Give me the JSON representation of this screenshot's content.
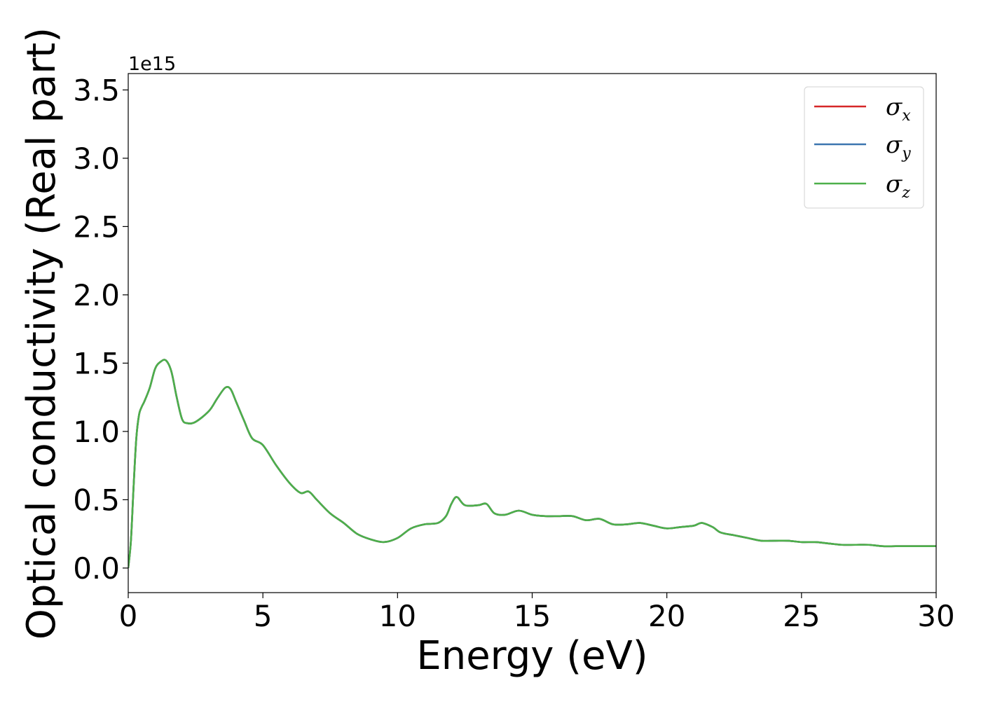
{
  "chart_data": {
    "type": "line",
    "xlabel": "Energy (eV)",
    "ylabel": "Optical conductivity (Real part)",
    "y_offset_label": "1e15",
    "xlim": [
      0,
      30
    ],
    "ylim": [
      -0.18,
      3.62
    ],
    "x_ticks": [
      0,
      5,
      10,
      15,
      20,
      25,
      30
    ],
    "x_tick_labels": [
      "0",
      "5",
      "10",
      "15",
      "20",
      "25",
      "30"
    ],
    "y_ticks": [
      0.0,
      0.5,
      1.0,
      1.5,
      2.0,
      2.5,
      3.0,
      3.5
    ],
    "y_tick_labels": [
      "0.0",
      "0.5",
      "1.0",
      "1.5",
      "2.0",
      "2.5",
      "3.0",
      "3.5"
    ],
    "grid": false,
    "legend_position": "top-right",
    "x": [
      0,
      0.1,
      0.2,
      0.3,
      0.4,
      0.5,
      0.6,
      0.8,
      1.0,
      1.2,
      1.4,
      1.6,
      1.8,
      2.0,
      2.2,
      2.5,
      3.0,
      3.3,
      3.6,
      3.8,
      4.0,
      4.3,
      4.6,
      5.0,
      5.5,
      6.0,
      6.4,
      6.7,
      7.0,
      7.5,
      8.0,
      8.5,
      9.0,
      9.5,
      10.0,
      10.5,
      11.0,
      11.5,
      11.8,
      12.0,
      12.2,
      12.5,
      13.0,
      13.3,
      13.6,
      14.0,
      14.5,
      15.0,
      15.5,
      16.0,
      16.5,
      17.0,
      17.5,
      18.0,
      18.5,
      19.0,
      19.5,
      20.0,
      20.5,
      21.0,
      21.3,
      21.7,
      22.0,
      22.5,
      23.0,
      23.5,
      24.0,
      24.5,
      25.0,
      25.5,
      26.0,
      26.5,
      27.0,
      27.5,
      28.0,
      28.5,
      29.0,
      29.5,
      30.0
    ],
    "series": [
      {
        "name": "σx",
        "name_base": "σ",
        "name_sub": "x",
        "color": "#d62728",
        "values": [
          0.0,
          0.2,
          0.6,
          0.95,
          1.12,
          1.18,
          1.22,
          1.32,
          1.46,
          1.51,
          1.52,
          1.44,
          1.25,
          1.09,
          1.06,
          1.07,
          1.15,
          1.24,
          1.32,
          1.31,
          1.22,
          1.08,
          0.95,
          0.9,
          0.75,
          0.62,
          0.55,
          0.56,
          0.5,
          0.4,
          0.33,
          0.25,
          0.21,
          0.19,
          0.22,
          0.29,
          0.32,
          0.33,
          0.38,
          0.47,
          0.52,
          0.46,
          0.46,
          0.47,
          0.4,
          0.39,
          0.42,
          0.39,
          0.38,
          0.38,
          0.38,
          0.35,
          0.36,
          0.32,
          0.32,
          0.33,
          0.31,
          0.29,
          0.3,
          0.31,
          0.33,
          0.3,
          0.26,
          0.24,
          0.22,
          0.2,
          0.2,
          0.2,
          0.19,
          0.19,
          0.18,
          0.17,
          0.17,
          0.17,
          0.16,
          0.16,
          0.16,
          0.16,
          0.16
        ]
      },
      {
        "name": "σy",
        "name_base": "σ",
        "name_sub": "y",
        "color": "#3b75af",
        "values": [
          0.0,
          0.2,
          0.6,
          0.95,
          1.12,
          1.18,
          1.22,
          1.32,
          1.46,
          1.51,
          1.52,
          1.44,
          1.25,
          1.09,
          1.06,
          1.07,
          1.15,
          1.24,
          1.32,
          1.31,
          1.22,
          1.08,
          0.95,
          0.9,
          0.75,
          0.62,
          0.55,
          0.56,
          0.5,
          0.4,
          0.33,
          0.25,
          0.21,
          0.19,
          0.22,
          0.29,
          0.32,
          0.33,
          0.38,
          0.47,
          0.52,
          0.46,
          0.46,
          0.47,
          0.4,
          0.39,
          0.42,
          0.39,
          0.38,
          0.38,
          0.38,
          0.35,
          0.36,
          0.32,
          0.32,
          0.33,
          0.31,
          0.29,
          0.3,
          0.31,
          0.33,
          0.3,
          0.26,
          0.24,
          0.22,
          0.2,
          0.2,
          0.2,
          0.19,
          0.19,
          0.18,
          0.17,
          0.17,
          0.17,
          0.16,
          0.16,
          0.16,
          0.16,
          0.16
        ]
      },
      {
        "name": "σz",
        "name_base": "σ",
        "name_sub": "z",
        "color": "#4daf4a",
        "values": [
          0.0,
          0.2,
          0.6,
          0.95,
          1.12,
          1.18,
          1.22,
          1.32,
          1.46,
          1.51,
          1.52,
          1.44,
          1.25,
          1.09,
          1.06,
          1.07,
          1.15,
          1.24,
          1.32,
          1.31,
          1.22,
          1.08,
          0.95,
          0.9,
          0.75,
          0.62,
          0.55,
          0.56,
          0.5,
          0.4,
          0.33,
          0.25,
          0.21,
          0.19,
          0.22,
          0.29,
          0.32,
          0.33,
          0.38,
          0.47,
          0.52,
          0.46,
          0.46,
          0.47,
          0.4,
          0.39,
          0.42,
          0.39,
          0.38,
          0.38,
          0.38,
          0.35,
          0.36,
          0.32,
          0.32,
          0.33,
          0.31,
          0.29,
          0.3,
          0.31,
          0.33,
          0.3,
          0.26,
          0.24,
          0.22,
          0.2,
          0.2,
          0.2,
          0.19,
          0.19,
          0.18,
          0.17,
          0.17,
          0.17,
          0.16,
          0.16,
          0.16,
          0.16,
          0.16
        ]
      }
    ]
  }
}
